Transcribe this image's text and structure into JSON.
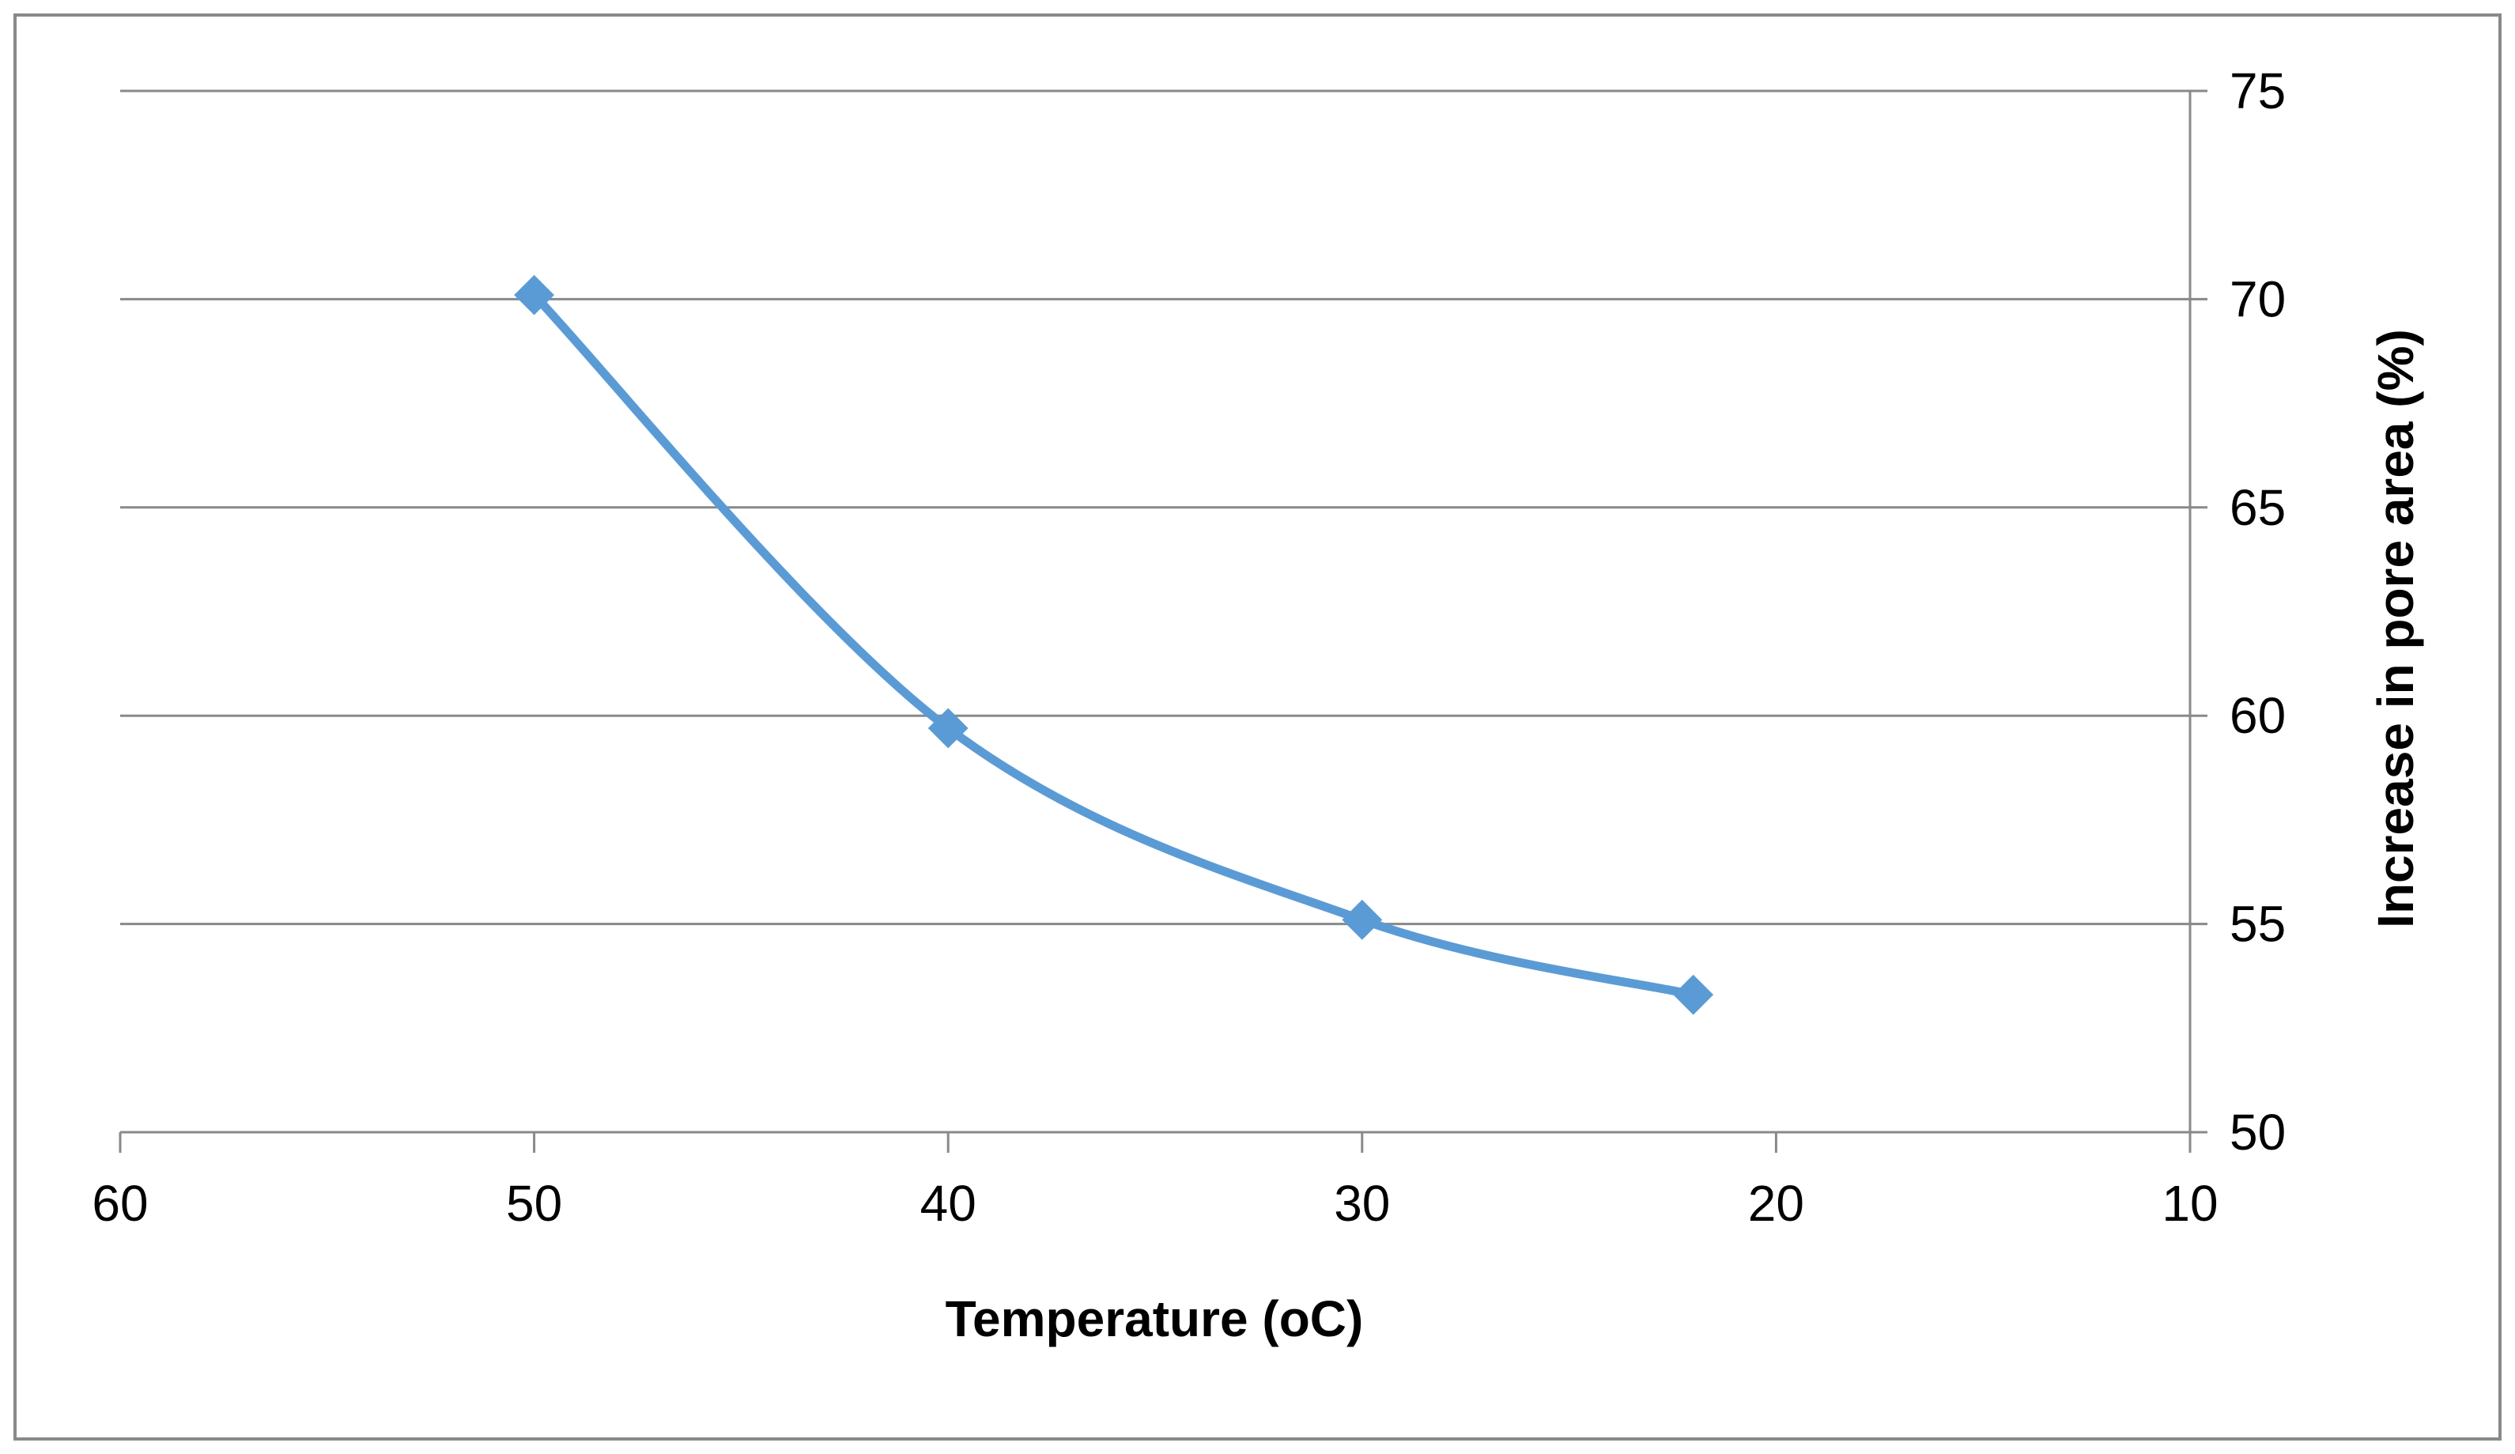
{
  "chart_data": {
    "type": "line",
    "title": "",
    "xlabel": "Temperature (oC)",
    "ylabel": "Increase in pore area (%)",
    "x_axis": {
      "min": 10,
      "max": 60,
      "reversed": true,
      "tick_step": 10,
      "ticks": [
        "60",
        "50",
        "40",
        "30",
        "20",
        "10"
      ]
    },
    "y_axis": {
      "min": 50,
      "max": 75,
      "position": "right",
      "tick_step": 5,
      "ticks": [
        "75",
        "70",
        "65",
        "60",
        "55",
        "50"
      ]
    },
    "grid": {
      "horizontal": true,
      "vertical": false
    },
    "legend": "none",
    "series": [
      {
        "color": "#5B9BD5",
        "marker": "diamond",
        "smooth": true,
        "points": [
          {
            "x": 50,
            "y": 70.1
          },
          {
            "x": 40,
            "y": 59.7
          },
          {
            "x": 30,
            "y": 55.1
          },
          {
            "x": 22,
            "y": 53.3
          }
        ]
      }
    ]
  },
  "colors": {
    "gridline": "#898989",
    "axis": "#898989",
    "border": "#898989",
    "series": "#5B9BD5"
  }
}
